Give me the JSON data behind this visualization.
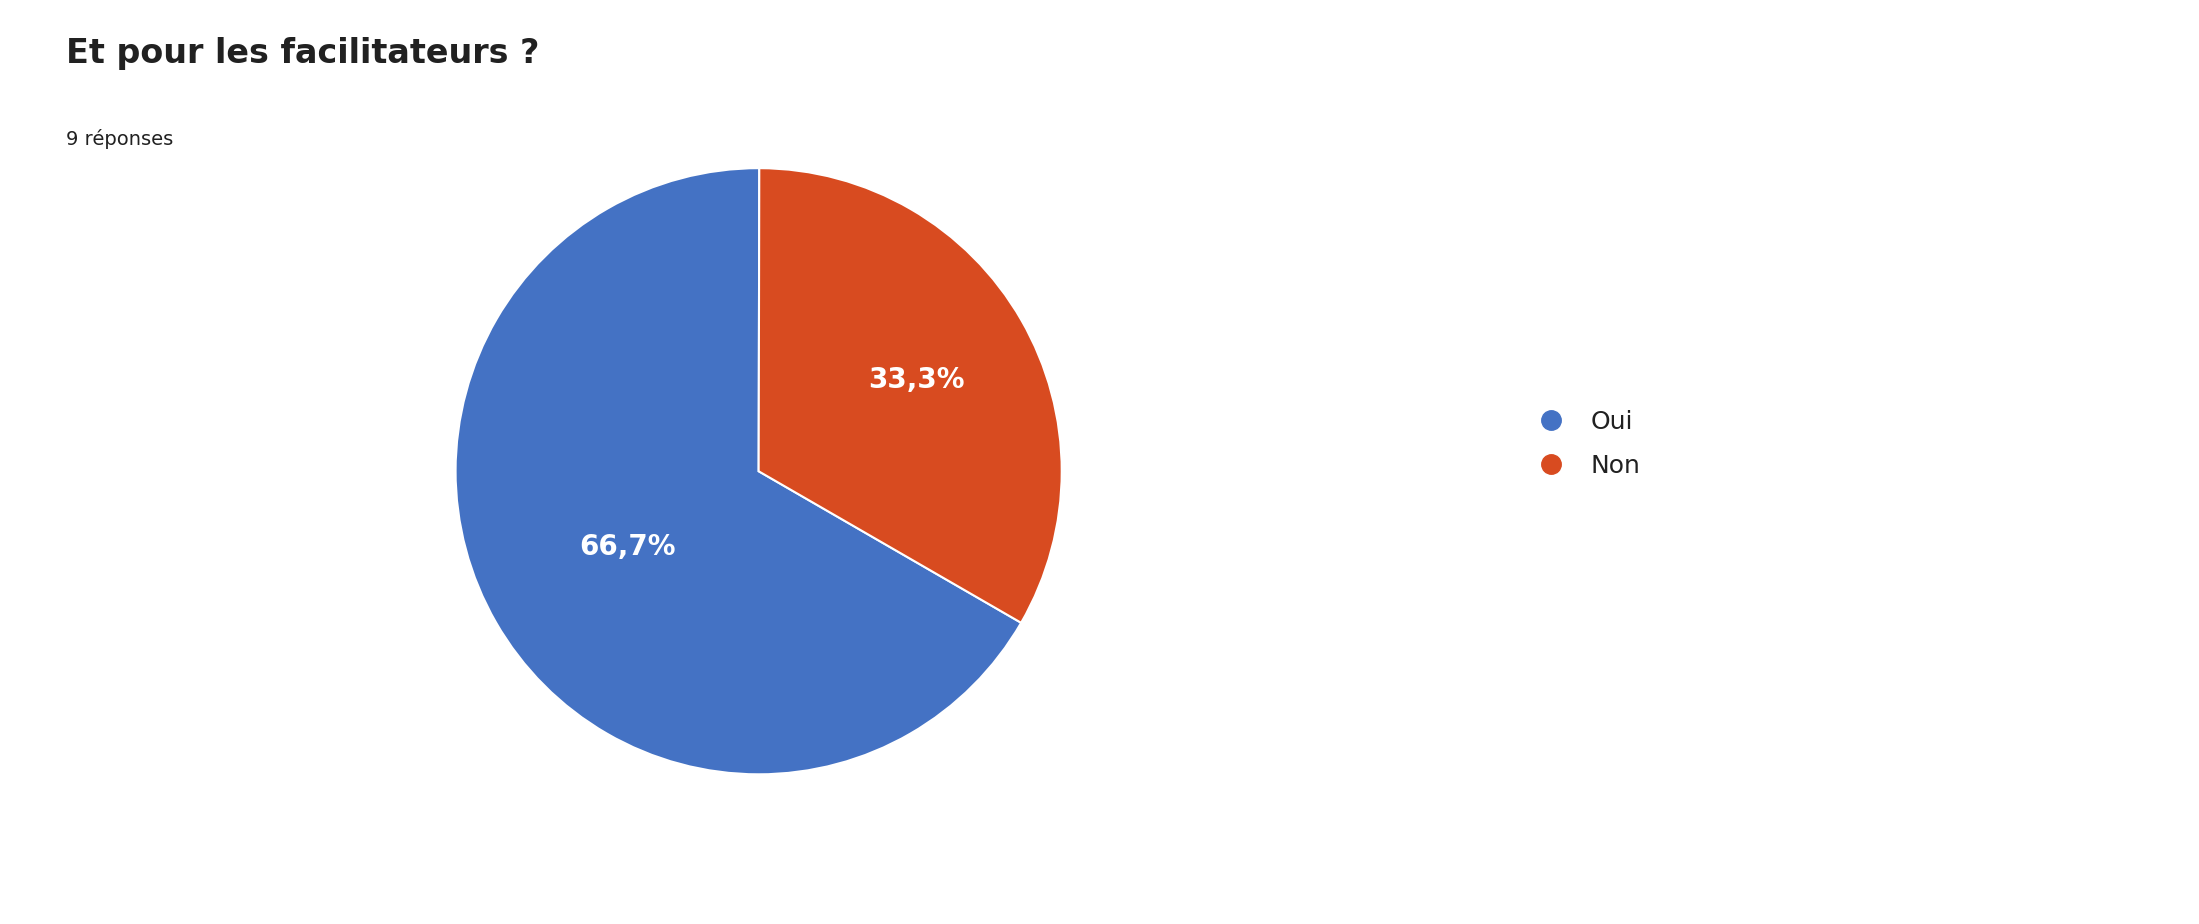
{
  "title": "Et pour les facilitateurs ?",
  "subtitle": "9 réponses",
  "labels": [
    "Oui",
    "Non"
  ],
  "values": [
    66.7,
    33.3
  ],
  "colors": [
    "#4472C4",
    "#D84B20"
  ],
  "autopct_labels": [
    "66,7%",
    "33,3%"
  ],
  "legend_labels": [
    "Oui",
    "Non"
  ],
  "background_color": "#ffffff",
  "title_fontsize": 24,
  "subtitle_fontsize": 14,
  "autopct_fontsize": 20,
  "legend_fontsize": 18,
  "startangle": 90,
  "text_color": "#212121"
}
